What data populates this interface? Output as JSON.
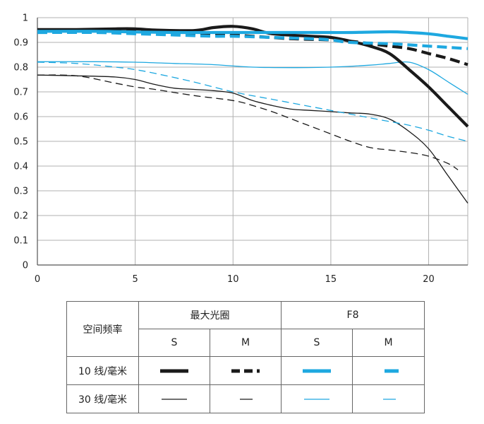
{
  "chart_data": {
    "type": "line",
    "xlim": [
      0,
      22
    ],
    "ylim": [
      0,
      1
    ],
    "x_ticks": [
      "0",
      "5",
      "10",
      "15",
      "20"
    ],
    "y_ticks": [
      "0",
      "0.1",
      "0.2",
      "0.3",
      "0.4",
      "0.5",
      "0.6",
      "0.7",
      "0.8",
      "0.9",
      "1"
    ],
    "grid": true,
    "colors": {
      "black": "#1a1a1a",
      "blue": "#1ea8e0"
    },
    "series": [
      {
        "frequency": "10 线/毫米",
        "aperture": "最大光圈",
        "orientation": "S",
        "color": "black",
        "dash": false,
        "width": "thick",
        "x": [
          0,
          2,
          4,
          5,
          6,
          8,
          9,
          10,
          11,
          12,
          14,
          15,
          16,
          17,
          18,
          19,
          20,
          21,
          22
        ],
        "y": [
          0.952,
          0.952,
          0.955,
          0.955,
          0.95,
          0.948,
          0.96,
          0.965,
          0.955,
          0.935,
          0.925,
          0.92,
          0.905,
          0.885,
          0.855,
          0.79,
          0.72,
          0.64,
          0.56
        ]
      },
      {
        "frequency": "10 线/毫米",
        "aperture": "最大光圈",
        "orientation": "M",
        "color": "black",
        "dash": true,
        "width": "thick",
        "x": [
          0,
          3,
          5,
          7,
          9,
          10,
          11,
          13,
          15,
          16,
          17,
          18,
          19,
          20,
          21,
          22
        ],
        "y": [
          0.945,
          0.945,
          0.945,
          0.94,
          0.935,
          0.93,
          0.925,
          0.915,
          0.91,
          0.905,
          0.895,
          0.885,
          0.875,
          0.855,
          0.835,
          0.81
        ]
      },
      {
        "frequency": "10 线/毫米",
        "aperture": "F8",
        "orientation": "S",
        "color": "blue",
        "dash": false,
        "width": "thick",
        "x": [
          0,
          3,
          5,
          7,
          9,
          10,
          12,
          14,
          15,
          16,
          18,
          19,
          20,
          21,
          22
        ],
        "y": [
          0.945,
          0.945,
          0.942,
          0.94,
          0.94,
          0.94,
          0.94,
          0.94,
          0.94,
          0.94,
          0.943,
          0.94,
          0.935,
          0.925,
          0.915
        ]
      },
      {
        "frequency": "10 线/毫米",
        "aperture": "F8",
        "orientation": "M",
        "color": "blue",
        "dash": true,
        "width": "thick",
        "x": [
          0,
          3,
          5,
          7,
          9,
          10,
          12,
          14,
          15,
          16,
          18,
          19,
          20,
          21,
          22
        ],
        "y": [
          0.94,
          0.94,
          0.935,
          0.93,
          0.925,
          0.925,
          0.92,
          0.915,
          0.91,
          0.9,
          0.895,
          0.89,
          0.885,
          0.88,
          0.875
        ]
      },
      {
        "frequency": "30 线/毫米",
        "aperture": "最大光圈",
        "orientation": "S",
        "color": "black",
        "dash": false,
        "width": "thin",
        "x": [
          0,
          2,
          4,
          5,
          6,
          7,
          8,
          9,
          10,
          11,
          12,
          13,
          14,
          15,
          16,
          17,
          18,
          19,
          20,
          21,
          22
        ],
        "y": [
          0.768,
          0.765,
          0.76,
          0.75,
          0.73,
          0.715,
          0.71,
          0.705,
          0.695,
          0.665,
          0.645,
          0.63,
          0.625,
          0.62,
          0.615,
          0.61,
          0.59,
          0.54,
          0.47,
          0.36,
          0.25
        ]
      },
      {
        "frequency": "30 线/毫米",
        "aperture": "最大光圈",
        "orientation": "M",
        "color": "black",
        "dash": true,
        "width": "thin",
        "x": [
          0,
          2,
          4,
          5,
          6,
          8,
          10,
          11,
          12,
          13,
          14,
          15,
          16,
          17,
          18,
          19,
          20,
          21,
          21.5
        ],
        "y": [
          0.768,
          0.765,
          0.735,
          0.72,
          0.71,
          0.685,
          0.665,
          0.645,
          0.62,
          0.59,
          0.56,
          0.53,
          0.5,
          0.475,
          0.465,
          0.455,
          0.44,
          0.41,
          0.385
        ]
      },
      {
        "frequency": "30 线/毫米",
        "aperture": "F8",
        "orientation": "S",
        "color": "blue",
        "dash": false,
        "width": "thin",
        "x": [
          0,
          3,
          5,
          7,
          9,
          11,
          13,
          15,
          17,
          18,
          19,
          20,
          21,
          22
        ],
        "y": [
          0.822,
          0.822,
          0.82,
          0.815,
          0.81,
          0.8,
          0.798,
          0.8,
          0.808,
          0.815,
          0.82,
          0.79,
          0.74,
          0.69
        ]
      },
      {
        "frequency": "30 线/毫米",
        "aperture": "F8",
        "orientation": "M",
        "color": "blue",
        "dash": true,
        "width": "thin",
        "x": [
          0,
          2,
          4,
          5,
          6,
          8,
          10,
          12,
          14,
          15,
          16,
          17,
          18,
          19,
          20,
          21,
          22
        ],
        "y": [
          0.82,
          0.815,
          0.8,
          0.79,
          0.775,
          0.74,
          0.7,
          0.67,
          0.64,
          0.625,
          0.61,
          0.595,
          0.58,
          0.565,
          0.545,
          0.52,
          0.5
        ]
      }
    ]
  },
  "legend": {
    "row_header": "空间频率",
    "groups": [
      "最大光圈",
      "F8"
    ],
    "orientations": [
      "S",
      "M",
      "S",
      "M"
    ],
    "rows": [
      "10 线/毫米",
      "30 线/毫米"
    ]
  }
}
